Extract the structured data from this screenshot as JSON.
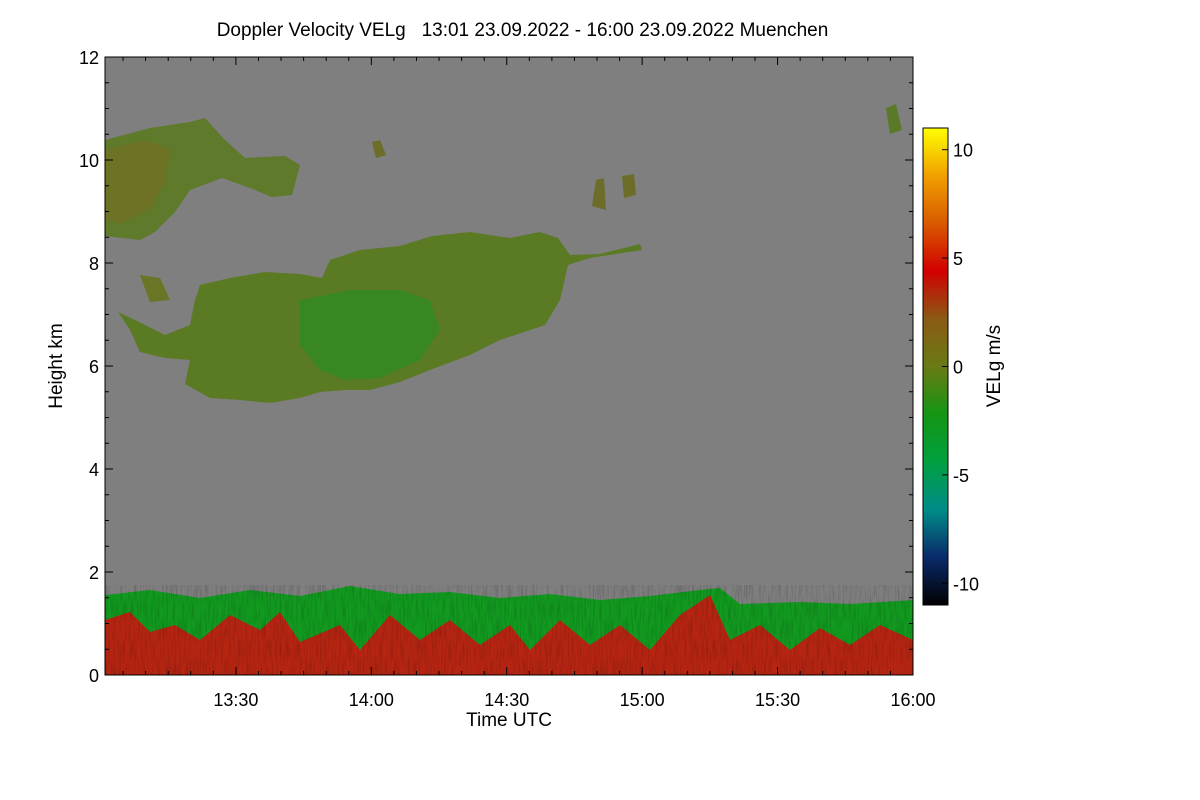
{
  "chart_data": {
    "type": "heatmap",
    "title": "Doppler Velocity VELg   13:01 23.09.2022 - 16:00 23.09.2022 Muenchen",
    "xlabel": "Time UTC",
    "ylabel": "Height km",
    "xlim": [
      "13:01",
      "16:00"
    ],
    "ylim": [
      0,
      12
    ],
    "x_ticks": [
      "13:30",
      "14:00",
      "14:30",
      "15:00",
      "15:30",
      "16:00"
    ],
    "y_ticks": [
      0,
      2,
      4,
      6,
      8,
      10,
      12
    ],
    "colorbar": {
      "label": "VELg m/s",
      "range": [
        -11,
        11
      ],
      "ticks": [
        10,
        5,
        0,
        -5,
        -10
      ],
      "colors": [
        "#000000",
        "#0a2a6a",
        "#008c88",
        "#00a040",
        "#149614",
        "#6a7a14",
        "#8a5a14",
        "#d20000",
        "#d85a00",
        "#f0a000",
        "#ffff00"
      ]
    },
    "background_color": "#7f7f7f",
    "features": [
      {
        "name": "upper cloud layer",
        "time_range": [
          "13:01",
          "13:52"
        ],
        "height_km": [
          8.5,
          10.7
        ],
        "velocity_m_s": -1
      },
      {
        "name": "mid-level cloud",
        "time_range": [
          "13:20",
          "14:45"
        ],
        "height_km": [
          5.3,
          8.6
        ],
        "velocity_m_s": -1.5
      },
      {
        "name": "boundary layer",
        "time_range": [
          "13:01",
          "16:00"
        ],
        "height_km": [
          0,
          1.7
        ],
        "velocity_m_s": "mixed -3 to 3"
      }
    ]
  }
}
